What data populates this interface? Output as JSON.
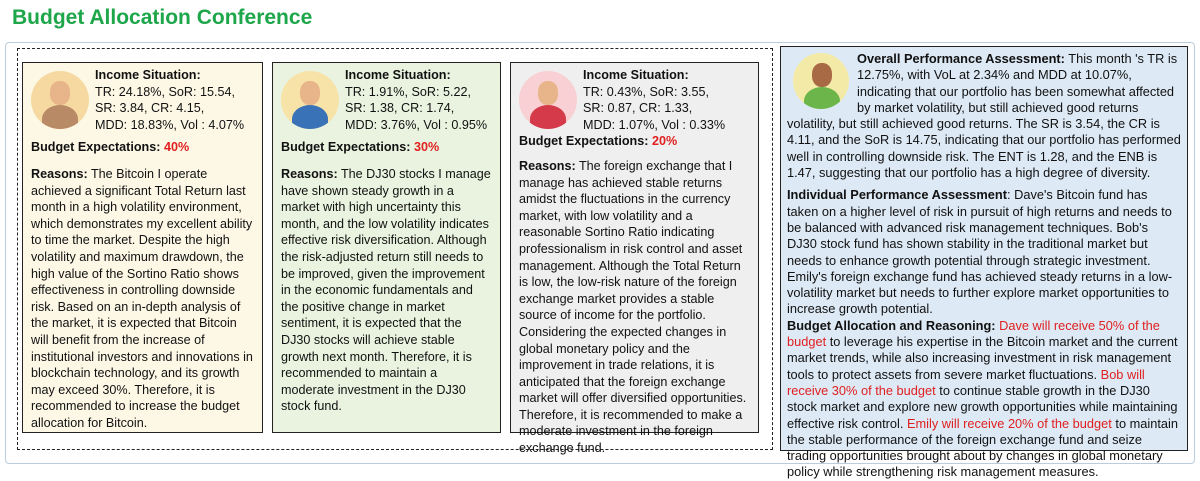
{
  "title": "Budget Allocation Conference",
  "agents": [
    {
      "income_label": "Income Situation:",
      "income_lines": [
        "TR: 24.18%, SoR: 15.54,",
        "SR: 3.84, CR: 4.15,",
        "MDD: 18.83%, Vol : 4.07%"
      ],
      "budget_label": "Budget Expectations:",
      "budget_value": "40%",
      "reasons_label": "Reasons:",
      "reasons": "The Bitcoin I operate achieved a significant Total Return last month in a high volatility environment, which demonstrates my excellent ability to time the market. Despite the high volatility and maximum drawdown, the high value of the Sortino Ratio shows effectiveness in controlling downside risk. Based on an in-depth analysis of the market, it is expected that Bitcoin will benefit from the increase of institutional investors and innovations in blockchain technology, and its growth may exceed 30%. Therefore, it is recommended to increase the budget allocation for Bitcoin."
    },
    {
      "income_label": "Income Situation:",
      "income_lines": [
        "TR: 1.91%, SoR: 5.22,",
        "SR: 1.38, CR: 1.74,",
        "MDD: 3.76%, Vol : 0.95%"
      ],
      "budget_label": "Budget Expectations:",
      "budget_value": "30%",
      "reasons_label": "Reasons:",
      "reasons": "The DJ30 stocks I manage have shown steady growth in a market with high uncertainty this month, and the low volatility indicates effective risk diversification. Although the risk-adjusted return still needs to be improved, given the improvement in the economic fundamentals and the positive change in market sentiment, it is expected that the DJ30 stocks will achieve stable growth next month. Therefore, it is recommended to maintain a moderate investment in the DJ30 stock fund."
    },
    {
      "income_label": "Income Situation:",
      "income_lines": [
        "TR: 0.43%, SoR: 3.55,",
        "SR: 0.87, CR: 1.33,",
        "MDD: 1.07%, Vol : 0.33%"
      ],
      "budget_label": "Budget Expectations:",
      "budget_value": "20%",
      "reasons_label": "Reasons:",
      "reasons": "The foreign exchange that I manage has achieved stable returns amidst the fluctuations in the currency market, with low volatility and a reasonable Sortino Ratio indicating professionalism in risk control and asset management. Although the Total Return is low, the low-risk nature of the foreign exchange market provides a stable source of income for the portfolio. Considering the expected changes in global monetary policy and the improvement in trade relations, it is anticipated that the foreign exchange market will offer diversified opportunities. Therefore, it is recommended to make a moderate investment in the foreign exchange fund."
    }
  ],
  "manager": {
    "overall_label": "Overall Performance Assessment:",
    "overall": "This month  's TR is 12.75%, with VoL at 2.34% and MDD at 10.07%, indicating that our portfolio has been somewhat affected by market volatility, but still achieved good returns volatility, but still achieved good returns. The SR is 3.54, the CR is 4.11, and the SoR is 14.75, indicating that our portfolio has performed well in controlling downside risk. The ENT is 1.28, and the ENB is 1.47, suggesting that our portfolio has a high degree of diversity.",
    "individual_label": "Individual Performance Assessment",
    "individual": ": Dave's Bitcoin fund has taken on a higher level of risk in pursuit of high returns and needs to be balanced with advanced risk management techniques. Bob's DJ30 stock fund has shown stability in the traditional market but needs to enhance growth potential through strategic investment. Emily's foreign exchange fund has achieved steady returns in a low-volatility market but needs to further explore market opportunities to increase growth potential.",
    "allocation_label": "Budget Allocation and Reasoning:",
    "dave": "Dave will receive 50% of the budget",
    "dave_reason": " to leverage his expertise in the Bitcoin market and the current market trends, while also increasing investment in risk management tools to protect assets from severe market fluctuations. ",
    "bob": "Bob will receive 30% of the budget",
    "bob_reason": " to continue stable growth in the DJ30 stock market and explore new growth opportunities while maintaining effective risk control. ",
    "emily": "Emily will receive 20% of the budget",
    "emily_reason": " to maintain the stable performance of the foreign exchange fund and seize trading opportunities brought about by changes in global monetary policy while strengthening risk management measures."
  },
  "colors": {
    "title": "#1ea64a",
    "highlight": "#e02020",
    "card1": "#fdf8e6",
    "card2": "#eaf3e0",
    "card3": "#efefef",
    "manager": "#dde9f5"
  }
}
